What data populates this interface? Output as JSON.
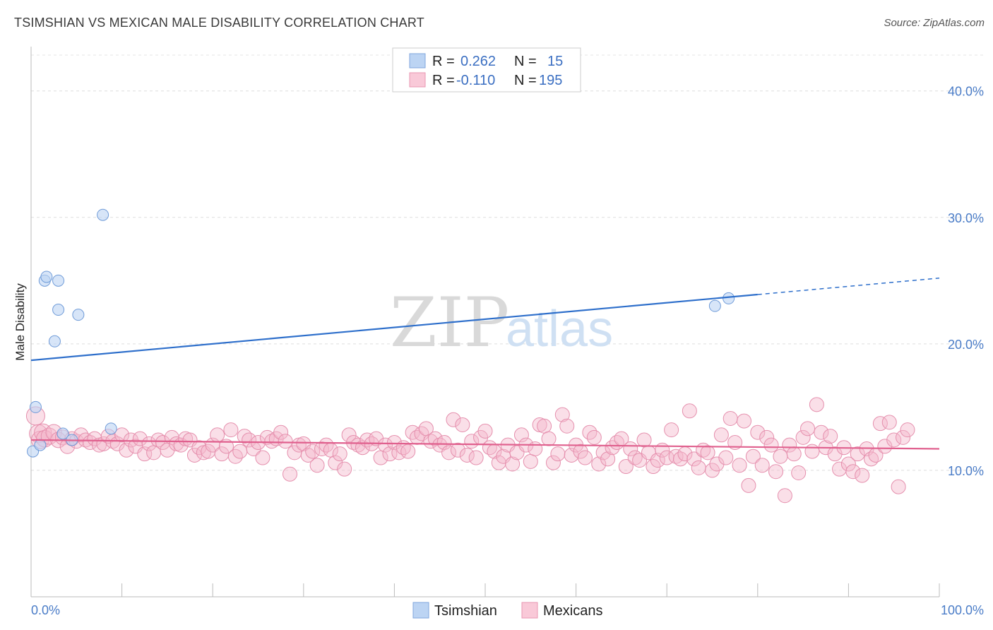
{
  "title": "TSIMSHIAN VS MEXICAN MALE DISABILITY CORRELATION CHART",
  "source": "Source: ZipAtlas.com",
  "watermark": {
    "part1": "ZIP",
    "part2": "atlas"
  },
  "legend": {
    "rows": [
      {
        "r_label": "R =",
        "r_value": "0.262",
        "n_label": "N =",
        "n_value": "15"
      },
      {
        "r_label": "R =",
        "r_value": "-0.110",
        "n_label": "N =",
        "n_value": "195"
      }
    ]
  },
  "bottom_legend": [
    "Tsimshian",
    "Mexicans"
  ],
  "chart_data": {
    "type": "scatter",
    "title": "TSIMSHIAN VS MEXICAN MALE DISABILITY CORRELATION CHART",
    "xlabel": "",
    "ylabel": "Male Disability",
    "xlim": [
      0,
      100
    ],
    "ylim": [
      0,
      43
    ],
    "x_tick_labels": [
      "0.0%",
      "100.0%"
    ],
    "y_ticks": [
      10,
      20,
      30,
      40
    ],
    "y_tick_labels": [
      "10.0%",
      "20.0%",
      "30.0%",
      "40.0%"
    ],
    "grid": true,
    "colors": {
      "tsimshian": "#4a7cc7",
      "mexicans": "#e06c94"
    },
    "series": [
      {
        "name": "Tsimshian",
        "color": "#a9c8ef",
        "points": [
          [
            0.2,
            11.5
          ],
          [
            0.5,
            15.0
          ],
          [
            1.0,
            12.0
          ],
          [
            1.5,
            25.0
          ],
          [
            1.7,
            25.3
          ],
          [
            2.6,
            20.2
          ],
          [
            3.0,
            22.7
          ],
          [
            3.0,
            25.0
          ],
          [
            3.5,
            12.9
          ],
          [
            4.5,
            12.4
          ],
          [
            5.2,
            22.3
          ],
          [
            7.9,
            30.2
          ],
          [
            8.8,
            13.3
          ],
          [
            75.3,
            23.0
          ],
          [
            76.8,
            23.6
          ]
        ],
        "trend": {
          "x0": 0,
          "y0": 18.7,
          "x1": 100,
          "y1": 25.2,
          "solid_until": 80
        }
      },
      {
        "name": "Mexicans",
        "color": "#f4b8cb",
        "points": [
          [
            0.5,
            14.3
          ],
          [
            0.8,
            12.9
          ],
          [
            1.0,
            12.4
          ],
          [
            1.3,
            13.0
          ],
          [
            1.5,
            12.5
          ],
          [
            2.0,
            12.7
          ],
          [
            2.5,
            13.0
          ],
          [
            3.0,
            12.4
          ],
          [
            3.5,
            12.6
          ],
          [
            4.0,
            11.9
          ],
          [
            4.5,
            12.5
          ],
          [
            5.0,
            12.3
          ],
          [
            5.5,
            12.8
          ],
          [
            6.0,
            12.4
          ],
          [
            6.5,
            12.2
          ],
          [
            7.0,
            12.5
          ],
          [
            7.5,
            12.0
          ],
          [
            8.0,
            12.1
          ],
          [
            8.5,
            12.7
          ],
          [
            9.0,
            12.3
          ],
          [
            9.5,
            12.1
          ],
          [
            10.0,
            12.8
          ],
          [
            10.5,
            11.6
          ],
          [
            11.0,
            12.4
          ],
          [
            11.5,
            11.9
          ],
          [
            12.0,
            12.5
          ],
          [
            12.5,
            11.3
          ],
          [
            13.0,
            12.1
          ],
          [
            13.5,
            11.4
          ],
          [
            14.0,
            12.4
          ],
          [
            14.5,
            12.2
          ],
          [
            15.0,
            11.6
          ],
          [
            15.5,
            12.6
          ],
          [
            16.0,
            12.1
          ],
          [
            16.5,
            12.0
          ],
          [
            17.0,
            12.5
          ],
          [
            17.5,
            12.4
          ],
          [
            18.0,
            11.2
          ],
          [
            18.5,
            11.8
          ],
          [
            19.0,
            11.4
          ],
          [
            19.5,
            11.5
          ],
          [
            20.0,
            12.0
          ],
          [
            20.5,
            12.8
          ],
          [
            21.0,
            11.3
          ],
          [
            21.5,
            11.9
          ],
          [
            22.0,
            13.2
          ],
          [
            22.5,
            11.1
          ],
          [
            23.0,
            11.5
          ],
          [
            23.5,
            12.7
          ],
          [
            24.0,
            12.4
          ],
          [
            24.5,
            11.7
          ],
          [
            25.0,
            12.2
          ],
          [
            25.5,
            11.0
          ],
          [
            26.0,
            12.6
          ],
          [
            26.5,
            12.3
          ],
          [
            27.0,
            12.5
          ],
          [
            27.5,
            13.0
          ],
          [
            28.0,
            12.3
          ],
          [
            28.5,
            9.7
          ],
          [
            29.0,
            11.4
          ],
          [
            29.5,
            12.0
          ],
          [
            30.0,
            12.1
          ],
          [
            30.5,
            11.2
          ],
          [
            31.0,
            11.5
          ],
          [
            31.5,
            10.4
          ],
          [
            32.0,
            11.7
          ],
          [
            32.5,
            12.0
          ],
          [
            33.0,
            11.6
          ],
          [
            33.5,
            10.6
          ],
          [
            34.0,
            11.3
          ],
          [
            34.5,
            10.1
          ],
          [
            35.0,
            12.8
          ],
          [
            35.5,
            12.2
          ],
          [
            36.0,
            12.0
          ],
          [
            36.5,
            11.8
          ],
          [
            37.0,
            12.4
          ],
          [
            37.5,
            12.1
          ],
          [
            38.0,
            12.5
          ],
          [
            38.5,
            11.0
          ],
          [
            39.0,
            12.0
          ],
          [
            39.5,
            11.3
          ],
          [
            40.0,
            12.2
          ],
          [
            40.5,
            11.4
          ],
          [
            41.0,
            11.8
          ],
          [
            41.5,
            11.5
          ],
          [
            42.0,
            13.0
          ],
          [
            42.5,
            12.6
          ],
          [
            43.0,
            12.9
          ],
          [
            43.5,
            13.3
          ],
          [
            44.0,
            12.3
          ],
          [
            44.5,
            12.5
          ],
          [
            45.0,
            12.0
          ],
          [
            45.5,
            12.2
          ],
          [
            46.0,
            11.4
          ],
          [
            46.5,
            14.0
          ],
          [
            47.0,
            11.6
          ],
          [
            47.5,
            13.6
          ],
          [
            48.0,
            11.2
          ],
          [
            48.5,
            12.3
          ],
          [
            49.0,
            11.0
          ],
          [
            49.5,
            12.6
          ],
          [
            50.0,
            13.1
          ],
          [
            50.5,
            11.8
          ],
          [
            51.0,
            11.5
          ],
          [
            51.5,
            10.6
          ],
          [
            52.0,
            11.1
          ],
          [
            52.5,
            12.0
          ],
          [
            53.0,
            10.5
          ],
          [
            53.5,
            11.4
          ],
          [
            54.0,
            12.8
          ],
          [
            54.5,
            12.0
          ],
          [
            55.0,
            10.7
          ],
          [
            55.5,
            11.7
          ],
          [
            56.0,
            13.6
          ],
          [
            56.5,
            13.5
          ],
          [
            57.0,
            12.5
          ],
          [
            57.5,
            10.6
          ],
          [
            58.0,
            11.3
          ],
          [
            58.5,
            14.4
          ],
          [
            59.0,
            13.5
          ],
          [
            59.5,
            11.2
          ],
          [
            60.0,
            12.0
          ],
          [
            60.5,
            11.5
          ],
          [
            61.0,
            11.0
          ],
          [
            61.5,
            13.0
          ],
          [
            62.0,
            12.6
          ],
          [
            62.5,
            10.5
          ],
          [
            63.0,
            11.4
          ],
          [
            63.5,
            10.9
          ],
          [
            64.0,
            11.8
          ],
          [
            64.5,
            12.2
          ],
          [
            65.0,
            12.5
          ],
          [
            65.5,
            10.3
          ],
          [
            66.0,
            11.7
          ],
          [
            66.5,
            11.0
          ],
          [
            67.0,
            10.8
          ],
          [
            67.5,
            12.4
          ],
          [
            68.0,
            11.4
          ],
          [
            68.5,
            10.3
          ],
          [
            69.0,
            10.8
          ],
          [
            69.5,
            11.6
          ],
          [
            70.0,
            11.0
          ],
          [
            70.5,
            13.2
          ],
          [
            71.0,
            11.1
          ],
          [
            71.5,
            10.9
          ],
          [
            72.0,
            11.3
          ],
          [
            72.5,
            14.7
          ],
          [
            73.0,
            10.9
          ],
          [
            73.5,
            10.2
          ],
          [
            74.0,
            11.6
          ],
          [
            74.5,
            11.4
          ],
          [
            75.0,
            10.0
          ],
          [
            75.5,
            10.5
          ],
          [
            76.0,
            12.8
          ],
          [
            76.5,
            11.0
          ],
          [
            77.0,
            14.1
          ],
          [
            77.5,
            12.2
          ],
          [
            78.0,
            10.4
          ],
          [
            78.5,
            13.9
          ],
          [
            79.0,
            8.8
          ],
          [
            79.5,
            11.1
          ],
          [
            80.0,
            13.0
          ],
          [
            80.5,
            10.4
          ],
          [
            81.0,
            12.6
          ],
          [
            81.5,
            12.0
          ],
          [
            82.0,
            9.9
          ],
          [
            82.5,
            11.1
          ],
          [
            83.0,
            8.0
          ],
          [
            83.5,
            12.0
          ],
          [
            84.0,
            11.3
          ],
          [
            84.5,
            9.8
          ],
          [
            85.0,
            12.6
          ],
          [
            85.5,
            13.3
          ],
          [
            86.0,
            11.5
          ],
          [
            86.5,
            15.2
          ],
          [
            87.0,
            13.0
          ],
          [
            87.5,
            11.8
          ],
          [
            88.0,
            12.7
          ],
          [
            88.5,
            11.3
          ],
          [
            89.0,
            10.1
          ],
          [
            89.5,
            11.8
          ],
          [
            90.0,
            10.5
          ],
          [
            90.5,
            9.9
          ],
          [
            91.0,
            11.3
          ],
          [
            91.5,
            9.6
          ],
          [
            92.0,
            11.7
          ],
          [
            92.5,
            10.9
          ],
          [
            93.0,
            11.2
          ],
          [
            93.5,
            13.7
          ],
          [
            94.0,
            11.9
          ],
          [
            94.5,
            13.8
          ],
          [
            95.0,
            12.4
          ],
          [
            95.5,
            8.7
          ],
          [
            96.0,
            12.6
          ],
          [
            96.5,
            13.2
          ]
        ],
        "trend": {
          "x0": 0,
          "y0": 12.4,
          "x1": 100,
          "y1": 11.7
        }
      }
    ]
  }
}
